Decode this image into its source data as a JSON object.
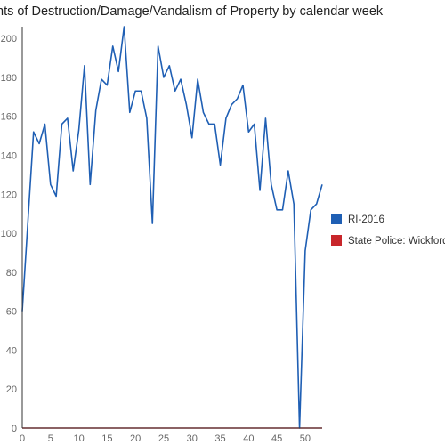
{
  "chart_data": {
    "type": "line",
    "title": "nts of Destruction/Damage/Vandalism of Property by calendar week",
    "xlabel": "",
    "ylabel": "",
    "xlim": [
      0,
      53
    ],
    "ylim": [
      0,
      206
    ],
    "x_ticks": [
      0,
      5,
      10,
      15,
      20,
      25,
      30,
      35,
      40,
      45,
      50
    ],
    "y_ticks": [
      0,
      20,
      40,
      60,
      80,
      100,
      120,
      140,
      160,
      180,
      200
    ],
    "grid": false,
    "legend_position": "right",
    "x": [
      0,
      1,
      2,
      3,
      4,
      5,
      6,
      7,
      8,
      9,
      10,
      11,
      12,
      13,
      14,
      15,
      16,
      17,
      18,
      19,
      20,
      21,
      22,
      23,
      24,
      25,
      26,
      27,
      28,
      29,
      30,
      31,
      32,
      33,
      34,
      35,
      36,
      37,
      38,
      39,
      40,
      41,
      42,
      43,
      44,
      45,
      46,
      47,
      48,
      49,
      50,
      51,
      52,
      53
    ],
    "series": [
      {
        "name": "RI-2016",
        "color": "#1f5fb4",
        "values": [
          60,
          106,
          152,
          146,
          156,
          125,
          119,
          156,
          159,
          132,
          153,
          186,
          125,
          163,
          179,
          176,
          196,
          183,
          206,
          162,
          173,
          173,
          159,
          105,
          196,
          180,
          186,
          173,
          179,
          166,
          149,
          179,
          162,
          156,
          156,
          135,
          159,
          166,
          169,
          176,
          152,
          156,
          122,
          159,
          125,
          112,
          112,
          132,
          115,
          0,
          91,
          112,
          115,
          125
        ]
      },
      {
        "name": "State Police: Wickford",
        "color": "#c8262b",
        "values": [
          0,
          0,
          0,
          0,
          0,
          0,
          0,
          0,
          0,
          0,
          0,
          0,
          0,
          0,
          0,
          0,
          0,
          0,
          0,
          0,
          0,
          0,
          0,
          0,
          0,
          0,
          0,
          0,
          0,
          0,
          0,
          0,
          0,
          0,
          0,
          0,
          0,
          0,
          0,
          0,
          0,
          0,
          0,
          0,
          0,
          0,
          0,
          0,
          0,
          0,
          0,
          0,
          0,
          0
        ]
      }
    ]
  }
}
